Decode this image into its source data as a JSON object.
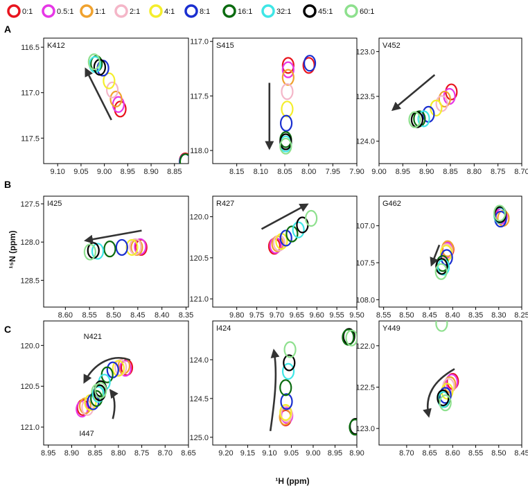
{
  "figure": {
    "xlabel": "¹H (ppm)",
    "ylabel": "¹⁵N (ppm)"
  },
  "legend": [
    {
      "label": "0:1",
      "color": "#e8141e"
    },
    {
      "label": "0.5:1",
      "color": "#e637e6"
    },
    {
      "label": "1:1",
      "color": "#f0a22e"
    },
    {
      "label": "2:1",
      "color": "#f4b6c8"
    },
    {
      "label": "4:1",
      "color": "#f4ee2c"
    },
    {
      "label": "8:1",
      "color": "#1a2fd0"
    },
    {
      "label": "16:1",
      "color": "#0b6b10"
    },
    {
      "label": "32:1",
      "color": "#3fe6e6"
    },
    {
      "label": "45:1",
      "color": "#000000"
    },
    {
      "label": "60:1",
      "color": "#8ee08e"
    }
  ],
  "chart_data": [
    {
      "type": "scatter",
      "row": "A",
      "title": "K412",
      "xlim": [
        9.13,
        8.82
      ],
      "ylim": [
        116.4,
        117.78
      ],
      "xticks": [
        "9.10",
        "9.05",
        "9.00",
        "8.95",
        "8.90",
        "8.85"
      ],
      "yticks": [
        "116.5",
        "117.0",
        "117.5"
      ],
      "peaks": [
        {
          "ratio": "0:1",
          "x": 8.966,
          "y": 117.18
        },
        {
          "ratio": "0.5:1",
          "x": 8.97,
          "y": 117.13
        },
        {
          "ratio": "1:1",
          "x": 8.975,
          "y": 117.07
        },
        {
          "ratio": "2:1",
          "x": 8.983,
          "y": 116.97
        },
        {
          "ratio": "4:1",
          "x": 8.99,
          "y": 116.87
        },
        {
          "ratio": "8:1",
          "x": 9.003,
          "y": 116.73
        },
        {
          "ratio": "16:1",
          "x": 9.017,
          "y": 116.68
        },
        {
          "ratio": "32:1",
          "x": 9.02,
          "y": 116.69
        },
        {
          "ratio": "45:1",
          "x": 9.01,
          "y": 116.72
        },
        {
          "ratio": "60:1",
          "x": 9.022,
          "y": 116.66
        },
        {
          "ratio": "0:1",
          "x": 8.827,
          "y": 117.75
        },
        {
          "ratio": "8:1",
          "x": 8.827,
          "y": 117.76
        },
        {
          "ratio": "16:1",
          "x": 8.826,
          "y": 117.76
        }
      ],
      "arrows": [
        {
          "from": [
            8.985,
            117.3
          ],
          "to": [
            9.04,
            116.74
          ]
        }
      ]
    },
    {
      "type": "scatter",
      "row": "A",
      "title": "S415",
      "xlim": [
        8.2,
        7.9
      ],
      "ylim": [
        116.97,
        118.12
      ],
      "xticks": [
        "8.15",
        "8.10",
        "8.05",
        "8.00",
        "7.95",
        "7.90"
      ],
      "yticks": [
        "117.0",
        "117.5",
        "118.0"
      ],
      "peaks": [
        {
          "ratio": "0:1",
          "x": 8.043,
          "y": 117.22
        },
        {
          "ratio": "0.5:1",
          "x": 8.043,
          "y": 117.26
        },
        {
          "ratio": "1:1",
          "x": 8.043,
          "y": 117.33
        },
        {
          "ratio": "2:1",
          "x": 8.045,
          "y": 117.46
        },
        {
          "ratio": "4:1",
          "x": 8.045,
          "y": 117.62
        },
        {
          "ratio": "8:1",
          "x": 8.047,
          "y": 117.75
        },
        {
          "ratio": "16:1",
          "x": 8.048,
          "y": 117.9
        },
        {
          "ratio": "32:1",
          "x": 8.048,
          "y": 117.94
        },
        {
          "ratio": "45:1",
          "x": 8.048,
          "y": 117.92
        },
        {
          "ratio": "60:1",
          "x": 8.048,
          "y": 117.96
        },
        {
          "ratio": "0:1",
          "x": 8.0,
          "y": 117.22
        },
        {
          "ratio": "8:1",
          "x": 7.998,
          "y": 117.2
        }
      ],
      "arrows": [
        {
          "from": [
            8.082,
            117.38
          ],
          "to": [
            8.082,
            117.98
          ]
        }
      ]
    },
    {
      "type": "scatter",
      "row": "A",
      "title": "V452",
      "xlim": [
        9.0,
        8.7
      ],
      "ylim": [
        122.85,
        124.25
      ],
      "xticks": [
        "9.00",
        "8.95",
        "8.90",
        "8.85",
        "8.80",
        "8.75",
        "8.70"
      ],
      "yticks": [
        "123.0",
        "123.5",
        "124.0"
      ],
      "peaks": [
        {
          "ratio": "0:1",
          "x": 8.848,
          "y": 123.45
        },
        {
          "ratio": "0.5:1",
          "x": 8.852,
          "y": 123.5
        },
        {
          "ratio": "1:1",
          "x": 8.862,
          "y": 123.53
        },
        {
          "ratio": "2:1",
          "x": 8.868,
          "y": 123.58
        },
        {
          "ratio": "4:1",
          "x": 8.88,
          "y": 123.63
        },
        {
          "ratio": "8:1",
          "x": 8.896,
          "y": 123.7
        },
        {
          "ratio": "16:1",
          "x": 8.915,
          "y": 123.75
        },
        {
          "ratio": "32:1",
          "x": 8.906,
          "y": 123.75
        },
        {
          "ratio": "45:1",
          "x": 8.92,
          "y": 123.76
        },
        {
          "ratio": "60:1",
          "x": 8.925,
          "y": 123.76
        }
      ],
      "arrows": [
        {
          "from": [
            8.883,
            123.26
          ],
          "to": [
            8.971,
            123.65
          ]
        }
      ]
    },
    {
      "type": "scatter",
      "row": "B",
      "title": "I425",
      "xlim": [
        8.645,
        8.345
      ],
      "ylim": [
        127.4,
        128.85
      ],
      "xticks": [
        "8.60",
        "8.55",
        "8.50",
        "8.45",
        "8.40",
        "8.35"
      ],
      "yticks": [
        "127.5",
        "128.0",
        "128.5"
      ],
      "peaks": [
        {
          "ratio": "0:1",
          "x": 8.443,
          "y": 128.07
        },
        {
          "ratio": "0.5:1",
          "x": 8.445,
          "y": 128.06
        },
        {
          "ratio": "1:1",
          "x": 8.452,
          "y": 128.07
        },
        {
          "ratio": "2:1",
          "x": 8.455,
          "y": 128.06
        },
        {
          "ratio": "4:1",
          "x": 8.462,
          "y": 128.07
        },
        {
          "ratio": "8:1",
          "x": 8.483,
          "y": 128.07
        },
        {
          "ratio": "16:1",
          "x": 8.508,
          "y": 128.09
        },
        {
          "ratio": "32:1",
          "x": 8.533,
          "y": 128.12
        },
        {
          "ratio": "45:1",
          "x": 8.542,
          "y": 128.11
        },
        {
          "ratio": "60:1",
          "x": 8.549,
          "y": 128.13
        }
      ],
      "arrows": [
        {
          "from": [
            8.442,
            127.85
          ],
          "to": [
            8.558,
            127.98
          ]
        }
      ]
    },
    {
      "type": "scatter",
      "row": "B",
      "title": "R427",
      "xlim": [
        9.86,
        9.5
      ],
      "ylim": [
        119.75,
        121.1
      ],
      "xticks": [
        "9.80",
        "9.75",
        "9.70",
        "9.65",
        "9.60",
        "9.55",
        "9.50"
      ],
      "yticks": [
        "120.0",
        "120.5",
        "121.0"
      ],
      "peaks": [
        {
          "ratio": "0:1",
          "x": 9.706,
          "y": 120.36
        },
        {
          "ratio": "0.5:1",
          "x": 9.703,
          "y": 120.35
        },
        {
          "ratio": "1:1",
          "x": 9.698,
          "y": 120.33
        },
        {
          "ratio": "2:1",
          "x": 9.694,
          "y": 120.32
        },
        {
          "ratio": "4:1",
          "x": 9.688,
          "y": 120.3
        },
        {
          "ratio": "8:1",
          "x": 9.677,
          "y": 120.26
        },
        {
          "ratio": "16:1",
          "x": 9.662,
          "y": 120.21
        },
        {
          "ratio": "32:1",
          "x": 9.646,
          "y": 120.16
        },
        {
          "ratio": "45:1",
          "x": 9.636,
          "y": 120.1
        },
        {
          "ratio": "60:1",
          "x": 9.614,
          "y": 120.02
        }
      ],
      "arrows": [
        {
          "from": [
            9.738,
            120.15
          ],
          "to": [
            9.624,
            119.85
          ]
        }
      ]
    },
    {
      "type": "scatter",
      "row": "B",
      "title": "G462",
      "xlim": [
        8.56,
        8.25
      ],
      "ylim": [
        106.6,
        108.1
      ],
      "xticks": [
        "8.55",
        "8.50",
        "8.45",
        "8.40",
        "8.35",
        "8.30",
        "8.25"
      ],
      "yticks": [
        "107.0",
        "107.5",
        "108.0"
      ],
      "peaks": [
        {
          "ratio": "0:1",
          "x": 8.41,
          "y": 107.32
        },
        {
          "ratio": "0.5:1",
          "x": 8.412,
          "y": 107.33
        },
        {
          "ratio": "1:1",
          "x": 8.411,
          "y": 107.31
        },
        {
          "ratio": "2:1",
          "x": 8.413,
          "y": 107.35
        },
        {
          "ratio": "4:1",
          "x": 8.414,
          "y": 107.37
        },
        {
          "ratio": "8:1",
          "x": 8.413,
          "y": 107.43
        },
        {
          "ratio": "16:1",
          "x": 8.422,
          "y": 107.51
        },
        {
          "ratio": "32:1",
          "x": 8.42,
          "y": 107.56
        },
        {
          "ratio": "45:1",
          "x": 8.424,
          "y": 107.55
        },
        {
          "ratio": "60:1",
          "x": 8.425,
          "y": 107.62
        },
        {
          "ratio": "0:1",
          "x": 8.296,
          "y": 106.87
        },
        {
          "ratio": "0.5:1",
          "x": 8.294,
          "y": 106.87
        },
        {
          "ratio": "1:1",
          "x": 8.29,
          "y": 106.9
        },
        {
          "ratio": "8:1",
          "x": 8.296,
          "y": 106.91
        },
        {
          "ratio": "16:1",
          "x": 8.297,
          "y": 106.84
        },
        {
          "ratio": "32:1",
          "x": 8.298,
          "y": 106.86
        },
        {
          "ratio": "45:1",
          "x": 8.297,
          "y": 106.85
        },
        {
          "ratio": "60:1",
          "x": 8.298,
          "y": 106.83
        }
      ],
      "arrows": [
        {
          "from": [
            8.429,
            107.26
          ],
          "to": [
            8.446,
            107.53
          ]
        }
      ]
    },
    {
      "type": "scatter",
      "row": "C",
      "title": "N421 / I447",
      "xlim": [
        8.96,
        8.65
      ],
      "ylim": [
        119.7,
        121.22
      ],
      "xticks": [
        "8.95",
        "8.90",
        "8.85",
        "8.80",
        "8.75",
        "8.70",
        "8.65"
      ],
      "yticks": [
        "120.0",
        "120.5",
        "121.0"
      ],
      "annotations": [
        {
          "text": "N421",
          "x": 8.855,
          "y": 119.92
        },
        {
          "text": "I447",
          "x": 8.868,
          "y": 121.11
        }
      ],
      "peaks": [
        {
          "ratio": "0:1",
          "x": 8.782,
          "y": 120.27
        },
        {
          "ratio": "0.5:1",
          "x": 8.785,
          "y": 120.28
        },
        {
          "ratio": "1:1",
          "x": 8.788,
          "y": 120.25
        },
        {
          "ratio": "2:1",
          "x": 8.795,
          "y": 120.27
        },
        {
          "ratio": "4:1",
          "x": 8.8,
          "y": 120.28
        },
        {
          "ratio": "8:1",
          "x": 8.812,
          "y": 120.3
        },
        {
          "ratio": "16:1",
          "x": 8.824,
          "y": 120.36
        },
        {
          "ratio": "32:1",
          "x": 8.83,
          "y": 120.45
        },
        {
          "ratio": "45:1",
          "x": 8.838,
          "y": 120.53
        },
        {
          "ratio": "60:1",
          "x": 8.845,
          "y": 120.57
        },
        {
          "ratio": "0:1",
          "x": 8.876,
          "y": 120.76
        },
        {
          "ratio": "0.5:1",
          "x": 8.878,
          "y": 120.78
        },
        {
          "ratio": "1:1",
          "x": 8.871,
          "y": 120.74
        },
        {
          "ratio": "2:1",
          "x": 8.866,
          "y": 120.76
        },
        {
          "ratio": "4:1",
          "x": 8.86,
          "y": 120.7
        },
        {
          "ratio": "8:1",
          "x": 8.854,
          "y": 120.69
        },
        {
          "ratio": "16:1",
          "x": 8.847,
          "y": 120.65
        },
        {
          "ratio": "32:1",
          "x": 8.843,
          "y": 120.6
        },
        {
          "ratio": "45:1",
          "x": 8.84,
          "y": 120.58
        },
        {
          "ratio": "60:1",
          "x": 8.838,
          "y": 120.55
        }
      ],
      "arrows": [
        {
          "curve": true,
          "pts": [
            [
              8.775,
              120.18
            ],
            [
              8.81,
              120.1
            ],
            [
              8.85,
              120.2
            ],
            [
              8.873,
              120.45
            ]
          ]
        },
        {
          "curve": true,
          "pts": [
            [
              8.812,
              120.9
            ],
            [
              8.805,
              120.75
            ],
            [
              8.808,
              120.62
            ],
            [
              8.817,
              120.55
            ]
          ]
        }
      ]
    },
    {
      "type": "scatter",
      "row": "C",
      "title": "I424",
      "xlim": [
        9.23,
        8.9
      ],
      "ylim": [
        123.5,
        125.1
      ],
      "xticks": [
        "9.20",
        "9.15",
        "9.10",
        "9.05",
        "9.00",
        "8.95",
        "8.90"
      ],
      "yticks": [
        "124.0",
        "124.5",
        "125.0"
      ],
      "peaks": [
        {
          "ratio": "0:1",
          "x": 9.063,
          "y": 124.75
        },
        {
          "ratio": "0.5:1",
          "x": 9.06,
          "y": 124.72
        },
        {
          "ratio": "1:1",
          "x": 9.064,
          "y": 124.74
        },
        {
          "ratio": "2:1",
          "x": 9.061,
          "y": 124.7
        },
        {
          "ratio": "4:1",
          "x": 9.063,
          "y": 124.68
        },
        {
          "ratio": "8:1",
          "x": 9.061,
          "y": 124.54
        },
        {
          "ratio": "16:1",
          "x": 9.063,
          "y": 124.36
        },
        {
          "ratio": "32:1",
          "x": 9.057,
          "y": 124.15
        },
        {
          "ratio": "45:1",
          "x": 9.055,
          "y": 124.04
        },
        {
          "ratio": "60:1",
          "x": 9.053,
          "y": 123.87
        },
        {
          "ratio": "45:1",
          "x": 8.918,
          "y": 123.7
        },
        {
          "ratio": "16:1",
          "x": 8.92,
          "y": 123.71
        },
        {
          "ratio": "60:1",
          "x": 8.912,
          "y": 123.72
        },
        {
          "ratio": "45:1",
          "x": 8.903,
          "y": 124.86
        },
        {
          "ratio": "16:1",
          "x": 8.904,
          "y": 124.87
        }
      ],
      "arrows": [
        {
          "curve": true,
          "pts": [
            [
              9.098,
              124.92
            ],
            [
              9.09,
              124.6
            ],
            [
              9.08,
              124.2
            ],
            [
              9.09,
              123.88
            ]
          ]
        }
      ]
    },
    {
      "type": "scatter",
      "row": "C",
      "title": "Y449",
      "xlim": [
        8.76,
        8.45
      ],
      "ylim": [
        121.7,
        123.2
      ],
      "xticks": [
        "8.70",
        "8.65",
        "8.60",
        "8.55",
        "8.50",
        "8.45"
      ],
      "yticks": [
        "122.0",
        "122.5",
        "123.0"
      ],
      "peaks": [
        {
          "ratio": "0:1",
          "x": 8.6,
          "y": 122.43
        },
        {
          "ratio": "0.5:1",
          "x": 8.602,
          "y": 122.44
        },
        {
          "ratio": "1:1",
          "x": 8.606,
          "y": 122.47
        },
        {
          "ratio": "2:1",
          "x": 8.609,
          "y": 122.49
        },
        {
          "ratio": "4:1",
          "x": 8.612,
          "y": 122.55
        },
        {
          "ratio": "8:1",
          "x": 8.616,
          "y": 122.6
        },
        {
          "ratio": "16:1",
          "x": 8.619,
          "y": 122.65
        },
        {
          "ratio": "32:1",
          "x": 8.62,
          "y": 122.65
        },
        {
          "ratio": "45:1",
          "x": 8.621,
          "y": 122.63
        },
        {
          "ratio": "60:1",
          "x": 8.616,
          "y": 122.69
        },
        {
          "ratio": "60:1",
          "x": 8.624,
          "y": 121.73
        }
      ],
      "arrows": [
        {
          "curve": true,
          "pts": [
            [
              8.596,
              122.28
            ],
            [
              8.64,
              122.42
            ],
            [
              8.662,
              122.6
            ],
            [
              8.652,
              122.85
            ]
          ]
        }
      ]
    }
  ]
}
